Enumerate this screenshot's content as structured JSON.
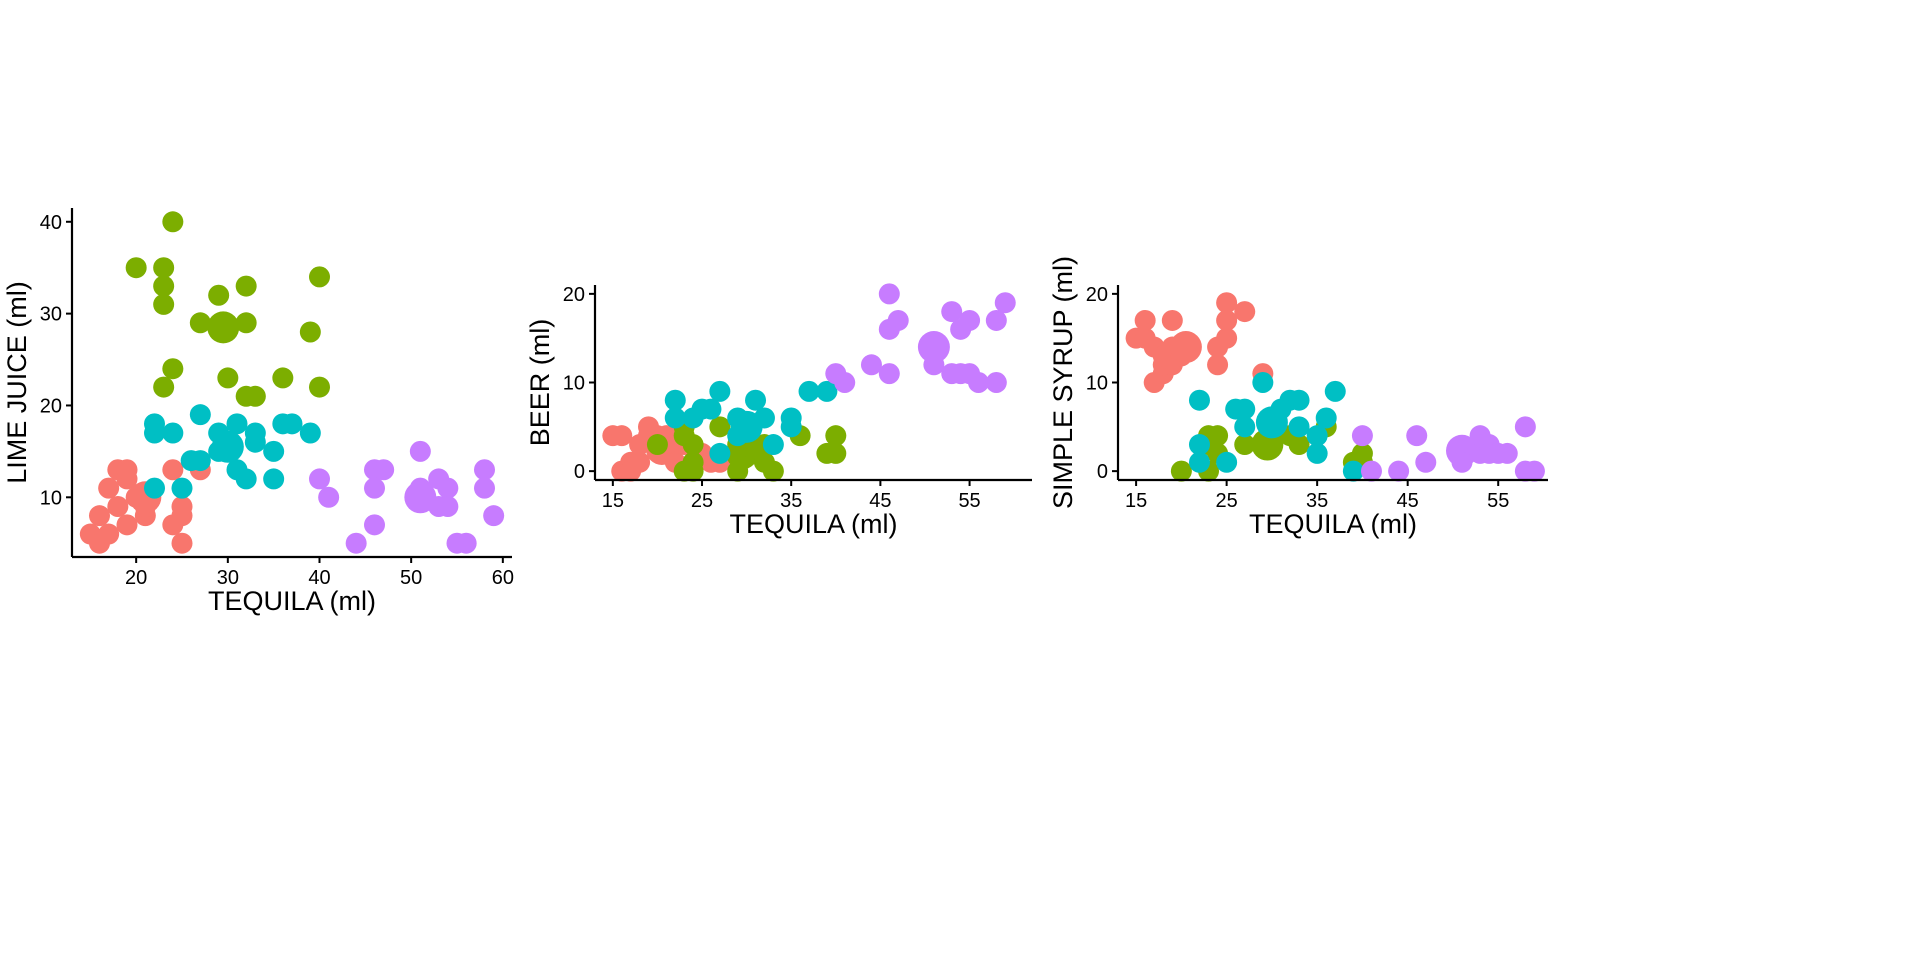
{
  "colors": {
    "group_1": "#F8766D",
    "group_2": "#7CAE00",
    "group_3": "#00BFC4",
    "group_4": "#C77CFF"
  },
  "chart_data": [
    {
      "type": "scatter",
      "xlabel": "TEQUILA (ml)",
      "ylabel": "LIME JUICE (ml)",
      "xlim": [
        13,
        61
      ],
      "ylim": [
        3.5,
        41.5
      ],
      "xticks": [
        20,
        30,
        40,
        50,
        60
      ],
      "yticks": [
        10,
        20,
        30,
        40
      ],
      "grid": false,
      "points": [
        {
          "x": 15,
          "y": 6,
          "g": 1
        },
        {
          "x": 16,
          "y": 5,
          "g": 1
        },
        {
          "x": 16,
          "y": 8,
          "g": 1
        },
        {
          "x": 17,
          "y": 6,
          "g": 1
        },
        {
          "x": 17,
          "y": 11,
          "g": 1
        },
        {
          "x": 18,
          "y": 9,
          "g": 1
        },
        {
          "x": 18,
          "y": 13,
          "g": 1
        },
        {
          "x": 19,
          "y": 7,
          "g": 1
        },
        {
          "x": 19,
          "y": 12,
          "g": 1
        },
        {
          "x": 19,
          "y": 13,
          "g": 1
        },
        {
          "x": 20,
          "y": 10,
          "g": 1
        },
        {
          "x": 21,
          "y": 8,
          "g": 1
        },
        {
          "x": 21,
          "y": 9,
          "g": 1
        },
        {
          "x": 21,
          "y": 10,
          "g": 1,
          "big": true
        },
        {
          "x": 24,
          "y": 7,
          "g": 1
        },
        {
          "x": 24,
          "y": 13,
          "g": 1
        },
        {
          "x": 25,
          "y": 5,
          "g": 1
        },
        {
          "x": 25,
          "y": 8,
          "g": 1
        },
        {
          "x": 25,
          "y": 9,
          "g": 1
        },
        {
          "x": 27,
          "y": 13,
          "g": 1
        },
        {
          "x": 20,
          "y": 35,
          "g": 2
        },
        {
          "x": 23,
          "y": 35,
          "g": 2
        },
        {
          "x": 23,
          "y": 33,
          "g": 2
        },
        {
          "x": 23,
          "y": 31,
          "g": 2
        },
        {
          "x": 23,
          "y": 22,
          "g": 2
        },
        {
          "x": 24,
          "y": 24,
          "g": 2
        },
        {
          "x": 24,
          "y": 40,
          "g": 2
        },
        {
          "x": 27,
          "y": 29,
          "g": 2
        },
        {
          "x": 29,
          "y": 32,
          "g": 2
        },
        {
          "x": 29.5,
          "y": 28.5,
          "g": 2,
          "big": true
        },
        {
          "x": 30,
          "y": 23,
          "g": 2
        },
        {
          "x": 32,
          "y": 33,
          "g": 2
        },
        {
          "x": 32,
          "y": 29,
          "g": 2
        },
        {
          "x": 32,
          "y": 21,
          "g": 2
        },
        {
          "x": 33,
          "y": 21,
          "g": 2
        },
        {
          "x": 36,
          "y": 23,
          "g": 2
        },
        {
          "x": 39,
          "y": 28,
          "g": 2
        },
        {
          "x": 40,
          "y": 34,
          "g": 2
        },
        {
          "x": 40,
          "y": 22,
          "g": 2
        },
        {
          "x": 22,
          "y": 11,
          "g": 3
        },
        {
          "x": 22,
          "y": 17,
          "g": 3
        },
        {
          "x": 22,
          "y": 18,
          "g": 3
        },
        {
          "x": 24,
          "y": 17,
          "g": 3
        },
        {
          "x": 25,
          "y": 11,
          "g": 3
        },
        {
          "x": 26,
          "y": 14,
          "g": 3
        },
        {
          "x": 27,
          "y": 14,
          "g": 3
        },
        {
          "x": 27,
          "y": 19,
          "g": 3
        },
        {
          "x": 29,
          "y": 15,
          "g": 3
        },
        {
          "x": 29,
          "y": 17,
          "g": 3
        },
        {
          "x": 30,
          "y": 15.5,
          "g": 3,
          "big": true
        },
        {
          "x": 31,
          "y": 18,
          "g": 3
        },
        {
          "x": 31,
          "y": 13,
          "g": 3
        },
        {
          "x": 32,
          "y": 12,
          "g": 3
        },
        {
          "x": 33,
          "y": 16,
          "g": 3
        },
        {
          "x": 33,
          "y": 17,
          "g": 3
        },
        {
          "x": 35,
          "y": 15,
          "g": 3
        },
        {
          "x": 35,
          "y": 12,
          "g": 3
        },
        {
          "x": 36,
          "y": 18,
          "g": 3
        },
        {
          "x": 37,
          "y": 18,
          "g": 3
        },
        {
          "x": 39,
          "y": 17,
          "g": 3
        },
        {
          "x": 40,
          "y": 12,
          "g": 4
        },
        {
          "x": 41,
          "y": 10,
          "g": 4
        },
        {
          "x": 44,
          "y": 5,
          "g": 4
        },
        {
          "x": 46,
          "y": 13,
          "g": 4
        },
        {
          "x": 46,
          "y": 11,
          "g": 4
        },
        {
          "x": 46,
          "y": 7,
          "g": 4
        },
        {
          "x": 47,
          "y": 13,
          "g": 4
        },
        {
          "x": 51,
          "y": 15,
          "g": 4
        },
        {
          "x": 51,
          "y": 11,
          "g": 4
        },
        {
          "x": 51,
          "y": 10,
          "g": 4,
          "big": true
        },
        {
          "x": 53,
          "y": 12,
          "g": 4
        },
        {
          "x": 53,
          "y": 9,
          "g": 4
        },
        {
          "x": 54,
          "y": 11,
          "g": 4
        },
        {
          "x": 54,
          "y": 9,
          "g": 4
        },
        {
          "x": 55,
          "y": 5,
          "g": 4
        },
        {
          "x": 56,
          "y": 5,
          "g": 4
        },
        {
          "x": 58,
          "y": 13,
          "g": 4
        },
        {
          "x": 58,
          "y": 11,
          "g": 4
        },
        {
          "x": 59,
          "y": 8,
          "g": 4
        }
      ]
    },
    {
      "type": "scatter",
      "xlabel": "TEQUILA (ml)",
      "ylabel": "BEER (ml)",
      "xlim": [
        13,
        62
      ],
      "ylim": [
        -1,
        21
      ],
      "xticks": [
        15,
        25,
        35,
        45,
        55
      ],
      "yticks": [
        0,
        10,
        20
      ],
      "grid": false,
      "points": [
        {
          "x": 15,
          "y": 4,
          "g": 1
        },
        {
          "x": 16,
          "y": 4,
          "g": 1
        },
        {
          "x": 16,
          "y": 0,
          "g": 1
        },
        {
          "x": 17,
          "y": 1,
          "g": 1
        },
        {
          "x": 17,
          "y": 0,
          "g": 1
        },
        {
          "x": 18,
          "y": 1,
          "g": 1
        },
        {
          "x": 18,
          "y": 3,
          "g": 1
        },
        {
          "x": 19,
          "y": 4,
          "g": 1
        },
        {
          "x": 19,
          "y": 5,
          "g": 1
        },
        {
          "x": 20,
          "y": 4,
          "g": 1
        },
        {
          "x": 20.5,
          "y": 2.5,
          "g": 1,
          "big": true
        },
        {
          "x": 21,
          "y": 4,
          "g": 1
        },
        {
          "x": 22,
          "y": 1,
          "g": 1
        },
        {
          "x": 23,
          "y": 3,
          "g": 1
        },
        {
          "x": 24,
          "y": 1,
          "g": 1
        },
        {
          "x": 25,
          "y": 2,
          "g": 1
        },
        {
          "x": 26,
          "y": 1,
          "g": 1
        },
        {
          "x": 27,
          "y": 1,
          "g": 1
        },
        {
          "x": 20,
          "y": 3,
          "g": 2
        },
        {
          "x": 23,
          "y": 5,
          "g": 2
        },
        {
          "x": 23,
          "y": 4,
          "g": 2
        },
        {
          "x": 23,
          "y": 0,
          "g": 2
        },
        {
          "x": 24,
          "y": 3,
          "g": 2
        },
        {
          "x": 24,
          "y": 1,
          "g": 2
        },
        {
          "x": 24,
          "y": 0,
          "g": 2
        },
        {
          "x": 27,
          "y": 5,
          "g": 2
        },
        {
          "x": 29,
          "y": 3,
          "g": 2
        },
        {
          "x": 29,
          "y": 0,
          "g": 2
        },
        {
          "x": 29.5,
          "y": 2,
          "g": 2,
          "big": true
        },
        {
          "x": 30,
          "y": 3,
          "g": 2
        },
        {
          "x": 31,
          "y": 2,
          "g": 2
        },
        {
          "x": 32,
          "y": 3,
          "g": 2
        },
        {
          "x": 32,
          "y": 1,
          "g": 2
        },
        {
          "x": 33,
          "y": 0,
          "g": 2
        },
        {
          "x": 36,
          "y": 4,
          "g": 2
        },
        {
          "x": 39,
          "y": 2,
          "g": 2
        },
        {
          "x": 40,
          "y": 4,
          "g": 2
        },
        {
          "x": 40,
          "y": 2,
          "g": 2
        },
        {
          "x": 22,
          "y": 8,
          "g": 3
        },
        {
          "x": 22,
          "y": 6,
          "g": 3
        },
        {
          "x": 24,
          "y": 6,
          "g": 3
        },
        {
          "x": 25,
          "y": 7,
          "g": 3
        },
        {
          "x": 26,
          "y": 7,
          "g": 3
        },
        {
          "x": 27,
          "y": 9,
          "g": 3
        },
        {
          "x": 27,
          "y": 2,
          "g": 3
        },
        {
          "x": 29,
          "y": 4,
          "g": 3
        },
        {
          "x": 29,
          "y": 6,
          "g": 3
        },
        {
          "x": 30,
          "y": 5,
          "g": 3,
          "big": true
        },
        {
          "x": 31,
          "y": 8,
          "g": 3
        },
        {
          "x": 32,
          "y": 6,
          "g": 3
        },
        {
          "x": 33,
          "y": 3,
          "g": 3
        },
        {
          "x": 35,
          "y": 6,
          "g": 3
        },
        {
          "x": 35,
          "y": 5,
          "g": 3
        },
        {
          "x": 37,
          "y": 9,
          "g": 3
        },
        {
          "x": 39,
          "y": 9,
          "g": 3
        },
        {
          "x": 40,
          "y": 11,
          "g": 4
        },
        {
          "x": 41,
          "y": 10,
          "g": 4
        },
        {
          "x": 44,
          "y": 12,
          "g": 4
        },
        {
          "x": 46,
          "y": 20,
          "g": 4
        },
        {
          "x": 46,
          "y": 16,
          "g": 4
        },
        {
          "x": 46,
          "y": 11,
          "g": 4
        },
        {
          "x": 47,
          "y": 17,
          "g": 4
        },
        {
          "x": 51,
          "y": 12,
          "g": 4
        },
        {
          "x": 51,
          "y": 14,
          "g": 4,
          "big": true
        },
        {
          "x": 53,
          "y": 18,
          "g": 4
        },
        {
          "x": 53,
          "y": 11,
          "g": 4
        },
        {
          "x": 54,
          "y": 16,
          "g": 4
        },
        {
          "x": 54,
          "y": 11,
          "g": 4
        },
        {
          "x": 55,
          "y": 17,
          "g": 4
        },
        {
          "x": 55,
          "y": 11,
          "g": 4
        },
        {
          "x": 56,
          "y": 10,
          "g": 4
        },
        {
          "x": 58,
          "y": 17,
          "g": 4
        },
        {
          "x": 58,
          "y": 10,
          "g": 4
        },
        {
          "x": 59,
          "y": 19,
          "g": 4
        }
      ]
    },
    {
      "type": "scatter",
      "xlabel": "TEQUILA (ml)",
      "ylabel": "SIMPLE SYRUP (ml)",
      "xlim": [
        13,
        60.5
      ],
      "ylim": [
        -1,
        21
      ],
      "xticks": [
        15,
        25,
        35,
        45,
        55
      ],
      "yticks": [
        0,
        10,
        20
      ],
      "grid": false,
      "points": [
        {
          "x": 15,
          "y": 15,
          "g": 1
        },
        {
          "x": 16,
          "y": 15,
          "g": 1
        },
        {
          "x": 16,
          "y": 17,
          "g": 1
        },
        {
          "x": 17,
          "y": 14,
          "g": 1
        },
        {
          "x": 17,
          "y": 10,
          "g": 1
        },
        {
          "x": 18,
          "y": 11,
          "g": 1
        },
        {
          "x": 18,
          "y": 12,
          "g": 1
        },
        {
          "x": 18,
          "y": 13,
          "g": 1
        },
        {
          "x": 19,
          "y": 12,
          "g": 1
        },
        {
          "x": 19,
          "y": 17,
          "g": 1
        },
        {
          "x": 19,
          "y": 14,
          "g": 1
        },
        {
          "x": 20,
          "y": 13,
          "g": 1
        },
        {
          "x": 20.5,
          "y": 14,
          "g": 1,
          "big": true
        },
        {
          "x": 24,
          "y": 12,
          "g": 1
        },
        {
          "x": 24,
          "y": 14,
          "g": 1
        },
        {
          "x": 25,
          "y": 19,
          "g": 1
        },
        {
          "x": 25,
          "y": 17,
          "g": 1
        },
        {
          "x": 25,
          "y": 15,
          "g": 1
        },
        {
          "x": 27,
          "y": 18,
          "g": 1
        },
        {
          "x": 29,
          "y": 11,
          "g": 1
        },
        {
          "x": 20,
          "y": 0,
          "g": 2
        },
        {
          "x": 23,
          "y": 0,
          "g": 2
        },
        {
          "x": 23,
          "y": 4,
          "g": 2
        },
        {
          "x": 23,
          "y": 3,
          "g": 2
        },
        {
          "x": 24,
          "y": 4,
          "g": 2
        },
        {
          "x": 24,
          "y": 2,
          "g": 2
        },
        {
          "x": 27,
          "y": 3,
          "g": 2
        },
        {
          "x": 29.5,
          "y": 3,
          "g": 2,
          "big": true
        },
        {
          "x": 32,
          "y": 4,
          "g": 2
        },
        {
          "x": 33,
          "y": 3,
          "g": 2
        },
        {
          "x": 36,
          "y": 5,
          "g": 2
        },
        {
          "x": 39,
          "y": 1,
          "g": 2
        },
        {
          "x": 40,
          "y": 2,
          "g": 2
        },
        {
          "x": 40,
          "y": 1,
          "g": 2
        },
        {
          "x": 22,
          "y": 8,
          "g": 3
        },
        {
          "x": 22,
          "y": 3,
          "g": 3
        },
        {
          "x": 22,
          "y": 1,
          "g": 3
        },
        {
          "x": 25,
          "y": 1,
          "g": 3
        },
        {
          "x": 26,
          "y": 7,
          "g": 3
        },
        {
          "x": 27,
          "y": 7,
          "g": 3
        },
        {
          "x": 27,
          "y": 5,
          "g": 3
        },
        {
          "x": 29,
          "y": 10,
          "g": 3
        },
        {
          "x": 30,
          "y": 5.5,
          "g": 3,
          "big": true
        },
        {
          "x": 31,
          "y": 7,
          "g": 3
        },
        {
          "x": 32,
          "y": 8,
          "g": 3
        },
        {
          "x": 33,
          "y": 8,
          "g": 3
        },
        {
          "x": 33,
          "y": 5,
          "g": 3
        },
        {
          "x": 35,
          "y": 4,
          "g": 3
        },
        {
          "x": 35,
          "y": 2,
          "g": 3
        },
        {
          "x": 36,
          "y": 6,
          "g": 3
        },
        {
          "x": 37,
          "y": 9,
          "g": 3
        },
        {
          "x": 39,
          "y": 0,
          "g": 3
        },
        {
          "x": 40,
          "y": 4,
          "g": 4
        },
        {
          "x": 41,
          "y": 0,
          "g": 4
        },
        {
          "x": 44,
          "y": 0,
          "g": 4
        },
        {
          "x": 46,
          "y": 4,
          "g": 4
        },
        {
          "x": 47,
          "y": 1,
          "g": 4
        },
        {
          "x": 51,
          "y": 2.3,
          "g": 4,
          "big": true
        },
        {
          "x": 51,
          "y": 1,
          "g": 4
        },
        {
          "x": 53,
          "y": 4,
          "g": 4
        },
        {
          "x": 53,
          "y": 2,
          "g": 4
        },
        {
          "x": 54,
          "y": 3,
          "g": 4
        },
        {
          "x": 54,
          "y": 2,
          "g": 4
        },
        {
          "x": 55,
          "y": 2,
          "g": 4
        },
        {
          "x": 56,
          "y": 2,
          "g": 4
        },
        {
          "x": 58,
          "y": 5,
          "g": 4
        },
        {
          "x": 58,
          "y": 0,
          "g": 4
        },
        {
          "x": 59,
          "y": 0,
          "g": 4
        }
      ]
    }
  ]
}
